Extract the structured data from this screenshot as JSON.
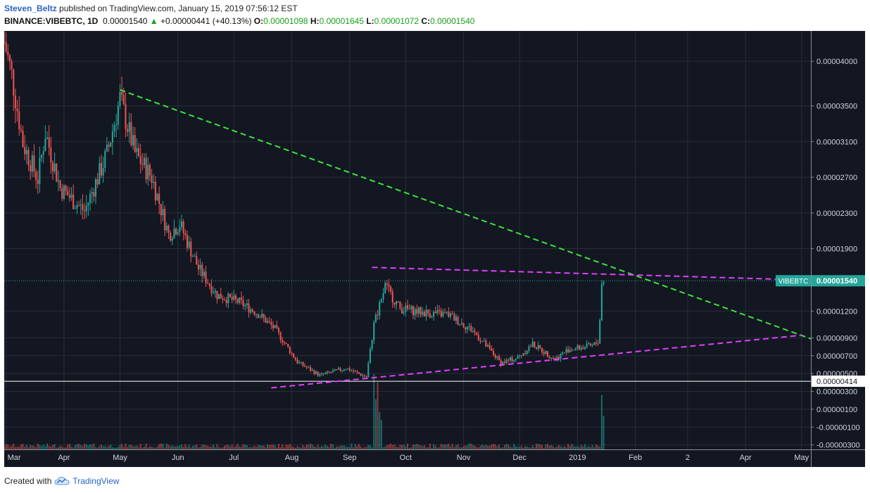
{
  "header": {
    "author": "Steven_Beltz",
    "published_text": "published on TradingView.com, January 15, 2019 07:56:12 EST",
    "symbol_line": "BINANCE:VIBEBTC, 1D",
    "last_price": "0.00001540",
    "change": "+0.00000441 (+40.13%)",
    "o_label": "O:",
    "o_value": "0.00001098",
    "h_label": "H:",
    "h_value": "0.00001645",
    "l_label": "L:",
    "l_value": "0.00001072",
    "c_label": "C:",
    "c_value": "0.00001540"
  },
  "footer": {
    "created_with": "Created with",
    "brand": "TradingView",
    "brand_icon": "tradingview-cloud-icon"
  },
  "colors": {
    "background": "#131722",
    "grid": "#2a2e39",
    "up": "#26a69a",
    "down": "#ef5350",
    "green_trend": "#3ce33c",
    "magenta_trend": "#e040fb",
    "price_line": "#26a69a",
    "support_line": "#ffffff"
  },
  "chart_data": {
    "type": "candlestick",
    "symbol": "VIBEBTC",
    "exchange": "BINANCE",
    "interval": "1D",
    "x_tick_labels": [
      "Mar",
      "Apr",
      "May",
      "Jun",
      "Jul",
      "Aug",
      "Sep",
      "Oct",
      "Nov",
      "Dec",
      "2019",
      "Feb",
      "2",
      "Apr",
      "May"
    ],
    "y_tick_labels": [
      "0.00004000",
      "0.00003500",
      "0.00003100",
      "0.00002700",
      "0.00002300",
      "0.00001900",
      "0.00001200",
      "0.00000900",
      "0.00000700",
      "0.00000500",
      "0.00000300",
      "0.00000100",
      "-0.00000100",
      "-0.00000300"
    ],
    "y_tick_values": [
      4e-05,
      3.5e-05,
      3.1e-05,
      2.7e-05,
      2.3e-05,
      1.9e-05,
      1.2e-05,
      9e-06,
      7e-06,
      5e-06,
      3e-06,
      1e-06,
      -1e-06,
      -3e-06
    ],
    "ylim": [
      -3.5e-06,
      4.34e-05
    ],
    "xlim": [
      "2018-02-28",
      "2019-05-06"
    ],
    "price_label": "VIBEBTC",
    "price_value": "0.00001540",
    "price": 1.54e-05,
    "support_label": "0.00000414",
    "support": 4.14e-06,
    "price_anchors": [
      [
        "2018-02-28",
        4.22e-05
      ],
      [
        "2018-03-04",
        3.85e-05
      ],
      [
        "2018-03-10",
        3.08e-05
      ],
      [
        "2018-03-18",
        2.68e-05
      ],
      [
        "2018-03-22",
        3.2e-05
      ],
      [
        "2018-03-30",
        2.58e-05
      ],
      [
        "2018-04-12",
        2.32e-05
      ],
      [
        "2018-04-24",
        2.96e-05
      ],
      [
        "2018-05-01",
        3.58e-05
      ],
      [
        "2018-05-09",
        2.97e-05
      ],
      [
        "2018-05-18",
        2.7e-05
      ],
      [
        "2018-05-27",
        2.06e-05
      ],
      [
        "2018-06-02",
        2.18e-05
      ],
      [
        "2018-06-12",
        1.68e-05
      ],
      [
        "2018-06-22",
        1.38e-05
      ],
      [
        "2018-07-04",
        1.3e-05
      ],
      [
        "2018-07-14",
        1.17e-05
      ],
      [
        "2018-07-23",
        1e-05
      ],
      [
        "2018-08-04",
        6.3e-06
      ],
      [
        "2018-08-16",
        4.8e-06
      ],
      [
        "2018-08-30",
        5.6e-06
      ],
      [
        "2018-09-10",
        4.6e-06
      ],
      [
        "2018-09-14",
        1.05e-05
      ],
      [
        "2018-09-20",
        1.48e-05
      ],
      [
        "2018-09-28",
        1.23e-05
      ],
      [
        "2018-10-12",
        1.18e-05
      ],
      [
        "2018-10-24",
        1.16e-05
      ],
      [
        "2018-11-06",
        9.8e-06
      ],
      [
        "2018-11-21",
        6.2e-06
      ],
      [
        "2018-11-30",
        6.8e-06
      ],
      [
        "2018-12-08",
        8.3e-06
      ],
      [
        "2018-12-20",
        6.6e-06
      ],
      [
        "2018-12-27",
        7.7e-06
      ],
      [
        "2019-01-09",
        8.1e-06
      ],
      [
        "2019-01-12",
        8.6e-06
      ],
      [
        "2019-01-13",
        1.11e-05
      ],
      [
        "2019-01-14",
        1.5e-05
      ],
      [
        "2019-01-15",
        1.54e-05
      ]
    ],
    "volume_spikes": [
      [
        "2018-09-14",
        0.18
      ],
      [
        "2018-09-15",
        0.12
      ],
      [
        "2018-09-16",
        0.16
      ],
      [
        "2018-09-17",
        0.09
      ],
      [
        "2018-09-18",
        0.07
      ],
      [
        "2019-01-14",
        0.13
      ],
      [
        "2019-01-15",
        0.08
      ]
    ],
    "trendlines": [
      {
        "name": "green-descending-trendline",
        "color": "green",
        "from": [
          "2018-05-01",
          3.68e-05
        ],
        "to": [
          "2019-05-06",
          8.9e-06
        ]
      },
      {
        "name": "magenta-upper-trendline",
        "color": "magenta",
        "from": [
          "2018-09-13",
          1.69e-05
        ],
        "to": [
          "2019-05-01",
          1.55e-05
        ]
      },
      {
        "name": "magenta-lower-trendline",
        "color": "magenta",
        "from": [
          "2018-07-21",
          3.4e-06
        ],
        "to": [
          "2019-05-01",
          9.3e-06
        ]
      }
    ]
  }
}
